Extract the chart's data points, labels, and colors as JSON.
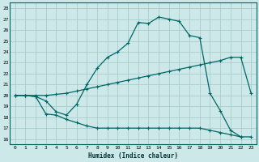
{
  "xlabel": "Humidex (Indice chaleur)",
  "ylabel": "",
  "bg_color": "#cce8e8",
  "grid_color": "#aacccc",
  "line_color": "#006666",
  "xlim": [
    -0.5,
    23.5
  ],
  "ylim": [
    15.5,
    28.5
  ],
  "xticks": [
    0,
    1,
    2,
    3,
    4,
    5,
    6,
    7,
    8,
    9,
    10,
    11,
    12,
    13,
    14,
    15,
    16,
    17,
    18,
    19,
    20,
    21,
    22,
    23
  ],
  "yticks": [
    16,
    17,
    18,
    19,
    20,
    21,
    22,
    23,
    24,
    25,
    26,
    27,
    28
  ],
  "series": [
    {
      "x": [
        0,
        1,
        2,
        3,
        4,
        5,
        6,
        7,
        8,
        9,
        10,
        11,
        12,
        13,
        14,
        15,
        16,
        17,
        18,
        19,
        20,
        21,
        22
      ],
      "y": [
        20.0,
        20.0,
        19.9,
        19.5,
        18.5,
        18.2,
        19.2,
        21.0,
        22.5,
        23.5,
        24.0,
        24.8,
        26.7,
        26.6,
        27.2,
        27.0,
        26.8,
        25.5,
        25.3,
        20.2,
        18.6,
        16.8,
        16.2
      ]
    },
    {
      "x": [
        0,
        1,
        2,
        3,
        4,
        5,
        6,
        7,
        8,
        9,
        10,
        11,
        12,
        13,
        14,
        15,
        16,
        17,
        18,
        19,
        20,
        21,
        22,
        23
      ],
      "y": [
        20.0,
        20.0,
        20.0,
        20.0,
        20.1,
        20.2,
        20.4,
        20.6,
        20.8,
        21.0,
        21.2,
        21.4,
        21.6,
        21.8,
        22.0,
        22.2,
        22.4,
        22.6,
        22.8,
        23.0,
        23.2,
        23.5,
        23.5,
        20.2
      ]
    },
    {
      "x": [
        0,
        1,
        2,
        3,
        4,
        5,
        6,
        7,
        8,
        9,
        10,
        11,
        12,
        13,
        14,
        15,
        16,
        17,
        18,
        19,
        20,
        21,
        22,
        23
      ],
      "y": [
        20.0,
        20.0,
        19.9,
        18.3,
        18.2,
        17.8,
        17.5,
        17.2,
        17.0,
        17.0,
        17.0,
        17.0,
        17.0,
        17.0,
        17.0,
        17.0,
        17.0,
        17.0,
        17.0,
        16.8,
        16.6,
        16.4,
        16.2,
        16.2
      ]
    }
  ]
}
